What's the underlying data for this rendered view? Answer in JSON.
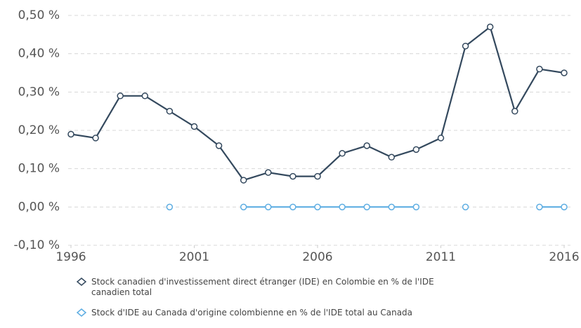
{
  "chart_data": {
    "type": "line",
    "x": [
      1996,
      1997,
      1998,
      1999,
      2000,
      2001,
      2002,
      2003,
      2004,
      2005,
      2006,
      2007,
      2008,
      2009,
      2010,
      2011,
      2012,
      2013,
      2014,
      2015,
      2016
    ],
    "series": [
      {
        "name": "Stock canadien d'investissement direct étranger (IDE) en Colombie en % de l'IDE canadien total",
        "color": "#34495e",
        "values": [
          0.19,
          0.18,
          0.29,
          0.29,
          0.25,
          0.21,
          0.16,
          0.07,
          0.09,
          0.08,
          0.08,
          0.14,
          0.16,
          0.13,
          0.15,
          0.18,
          0.42,
          0.47,
          0.25,
          0.36,
          0.35
        ]
      },
      {
        "name": "Stock d'IDE au Canada d'origine colombienne en % de l'IDE total au Canada",
        "color": "#5dade2",
        "values": [
          null,
          null,
          null,
          null,
          0,
          null,
          null,
          0,
          0,
          0,
          0,
          0,
          0,
          0,
          0,
          null,
          0,
          null,
          null,
          0,
          0
        ]
      }
    ],
    "xlim": [
      1996,
      2016
    ],
    "xticks": [
      1996,
      2001,
      2006,
      2011,
      2016
    ],
    "ylim": [
      -0.1,
      0.5
    ],
    "yticks": [
      {
        "value": -0.1,
        "label": "-0,10 %"
      },
      {
        "value": 0,
        "label": "0,00 %"
      },
      {
        "value": 0.1,
        "label": "0,10 %"
      },
      {
        "value": 0.2,
        "label": "0,20 %"
      },
      {
        "value": 0.3,
        "label": "0,30 %"
      },
      {
        "value": 0.4,
        "label": "0,40 %"
      },
      {
        "value": 0.5,
        "label": "0,50 %"
      }
    ],
    "grid": true
  }
}
